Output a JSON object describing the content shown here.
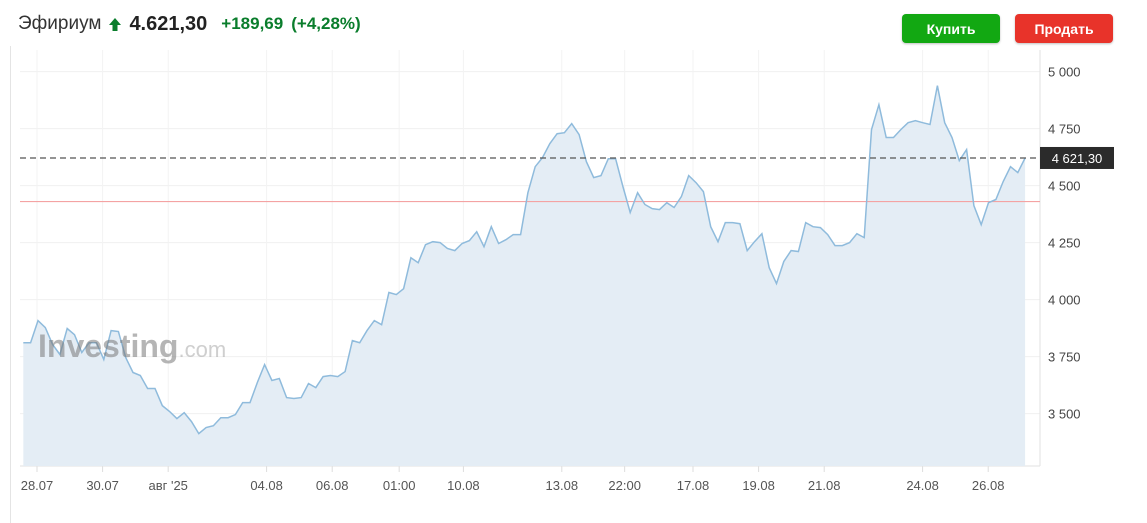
{
  "header": {
    "instrument": "Эфириум",
    "direction_icon": "arrow-up-icon",
    "price": "4.621,30",
    "change": "+189,69",
    "change_pct": "(+4,28%)",
    "up_color": "#0a7d2c"
  },
  "actions": {
    "buy_label": "Купить",
    "sell_label": "Продать",
    "buy_color": "#12a812",
    "sell_color": "#e8332a"
  },
  "watermark": {
    "brand": "Investing",
    "suffix": ".com"
  },
  "chart_data": {
    "type": "area",
    "ylim": [
      3270,
      5095
    ],
    "y_ticks": [
      {
        "value": 3500,
        "label": "3 500"
      },
      {
        "value": 3750,
        "label": "3 750"
      },
      {
        "value": 4000,
        "label": "4 000"
      },
      {
        "value": 4250,
        "label": "4 250"
      },
      {
        "value": 4500,
        "label": "4 500"
      },
      {
        "value": 4750,
        "label": "4 750"
      },
      {
        "value": 5000,
        "label": "5 000"
      }
    ],
    "x_range": [
      "2025-07-27T14:00",
      "2025-08-27T03:00"
    ],
    "x_ticks": [
      {
        "date": "2025-07-28T00:00",
        "label": "28.07"
      },
      {
        "date": "2025-07-30T00:00",
        "label": "30.07"
      },
      {
        "date": "2025-08-01T00:00",
        "label": "авг '25"
      },
      {
        "date": "2025-08-04T00:00",
        "label": "04.08"
      },
      {
        "date": "2025-08-06T00:00",
        "label": "06.08"
      },
      {
        "date": "2025-08-08T01:00",
        "label": "01:00"
      },
      {
        "date": "2025-08-10T00:00",
        "label": "10.08"
      },
      {
        "date": "2025-08-13T00:00",
        "label": "13.08"
      },
      {
        "date": "2025-08-14T22:00",
        "label": "22:00"
      },
      {
        "date": "2025-08-17T00:00",
        "label": "17.08"
      },
      {
        "date": "2025-08-19T00:00",
        "label": "19.08"
      },
      {
        "date": "2025-08-21T00:00",
        "label": "21.08"
      },
      {
        "date": "2025-08-24T00:00",
        "label": "24.08"
      },
      {
        "date": "2025-08-26T00:00",
        "label": "26.08"
      }
    ],
    "grid": true,
    "current_price": {
      "value": 4621.3,
      "label": "4 621,30"
    },
    "previous_close_line": 4430,
    "line_color": "#8fbbdc",
    "fill_color": "#e4edf5",
    "ref_line_color": "#f4a3a3",
    "values": [
      3811,
      3811,
      3908,
      3877,
      3803,
      3759,
      3873,
      3846,
      3768,
      3811,
      3811,
      3737,
      3864,
      3860,
      3746,
      3680,
      3667,
      3610,
      3610,
      3535,
      3509,
      3478,
      3504,
      3465,
      3412,
      3439,
      3447,
      3482,
      3482,
      3496,
      3548,
      3548,
      3636,
      3715,
      3645,
      3654,
      3570,
      3566,
      3570,
      3632,
      3614,
      3662,
      3667,
      3662,
      3684,
      3820,
      3811,
      3864,
      3908,
      3890,
      4031,
      4022,
      4048,
      4184,
      4162,
      4241,
      4254,
      4250,
      4224,
      4215,
      4246,
      4259,
      4298,
      4232,
      4320,
      4246,
      4263,
      4285,
      4285,
      4469,
      4583,
      4623,
      4684,
      4728,
      4732,
      4772,
      4724,
      4605,
      4535,
      4544,
      4618,
      4618,
      4496,
      4382,
      4469,
      4417,
      4399,
      4395,
      4425,
      4404,
      4452,
      4544,
      4513,
      4474,
      4320,
      4254,
      4338,
      4338,
      4333,
      4215,
      4254,
      4289,
      4140,
      4070,
      4167,
      4215,
      4211,
      4338,
      4320,
      4316,
      4285,
      4237,
      4237,
      4250,
      4289,
      4272,
      4746,
      4855,
      4711,
      4711,
      4746,
      4776,
      4785,
      4776,
      4768,
      4939,
      4776,
      4711,
      4610,
      4658,
      4412,
      4329,
      4425,
      4439,
      4518,
      4583,
      4557,
      4621.3
    ]
  }
}
